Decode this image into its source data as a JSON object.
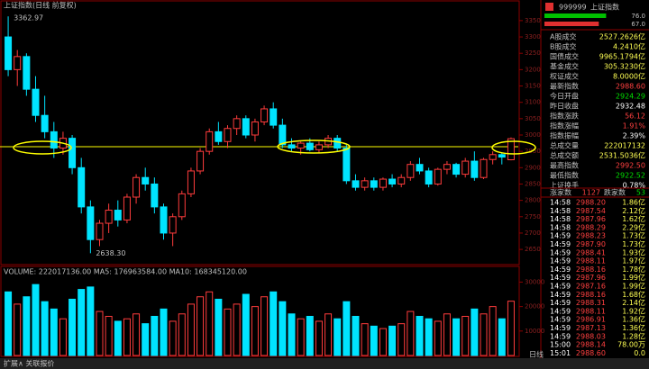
{
  "chart_data": {
    "type": "candlestick",
    "title": "上证指数(日线 前复权)",
    "high_label": "3362.97",
    "low_label": "2638.30",
    "up_color": "#ff3c3c",
    "down_color": "#00e4ff",
    "open": [
      3300,
      3200,
      3240,
      3140,
      3060,
      3010,
      2960,
      2990,
      2900,
      2780,
      2680,
      2730,
      2770,
      2740,
      2810,
      2870,
      2850,
      2780,
      2700,
      2750,
      2820,
      2890,
      2950,
      3010,
      2980,
      3020,
      3050,
      3000,
      3040,
      3080,
      3030,
      2970,
      2960,
      2975,
      2955,
      2970,
      2990,
      2960,
      2860,
      2840,
      2860,
      2840,
      2865,
      2850,
      2870,
      2910,
      2890,
      2850,
      2895,
      2910,
      2880,
      2920,
      2870,
      2925,
      2940,
      2924.29
    ],
    "high": [
      3362.97,
      3260,
      3250,
      3180,
      3120,
      3040,
      3010,
      3000,
      2930,
      2800,
      2740,
      2790,
      2800,
      2820,
      2880,
      2900,
      2870,
      2790,
      2760,
      2830,
      2900,
      2960,
      3020,
      3040,
      3030,
      3060,
      3060,
      3050,
      3090,
      3100,
      3050,
      2990,
      2980,
      2990,
      2980,
      3000,
      3000,
      2970,
      2880,
      2870,
      2870,
      2870,
      2880,
      2880,
      2920,
      2930,
      2900,
      2900,
      2920,
      2915,
      2930,
      2950,
      2930,
      2950,
      2945,
      2992.5
    ],
    "low": [
      3180,
      3150,
      3120,
      3040,
      2990,
      2930,
      2940,
      2880,
      2760,
      2638.3,
      2660,
      2700,
      2720,
      2730,
      2790,
      2830,
      2760,
      2680,
      2660,
      2740,
      2810,
      2880,
      2940,
      2970,
      2960,
      3000,
      2990,
      2980,
      3030,
      3020,
      2960,
      2950,
      2940,
      2950,
      2945,
      2960,
      2950,
      2850,
      2830,
      2830,
      2830,
      2830,
      2840,
      2840,
      2860,
      2880,
      2840,
      2845,
      2880,
      2870,
      2870,
      2860,
      2865,
      2910,
      2910,
      2922.52
    ],
    "close": [
      3200,
      3240,
      3140,
      3060,
      3010,
      2960,
      2990,
      2900,
      2780,
      2680,
      2730,
      2770,
      2740,
      2810,
      2870,
      2850,
      2780,
      2700,
      2750,
      2820,
      2890,
      2950,
      3010,
      2980,
      3020,
      3050,
      3000,
      3040,
      3080,
      3030,
      2970,
      2960,
      2975,
      2955,
      2970,
      2990,
      2960,
      2860,
      2840,
      2860,
      2840,
      2865,
      2850,
      2870,
      2910,
      2890,
      2850,
      2895,
      2910,
      2880,
      2920,
      2870,
      2925,
      2940,
      2932.48,
      2988.6
    ],
    "ylim": [
      2620,
      3380
    ],
    "yticks": [
      2650,
      2700,
      2750,
      2800,
      2850,
      2900,
      2950,
      3000,
      3050,
      3100,
      3150,
      3200,
      3250,
      3300,
      3350
    ],
    "volume_header": "VOLUME: 222017136.00  MA5: 176963584.00  MA10: 168345120.00",
    "volume": [
      26000,
      21000,
      24000,
      29000,
      22000,
      19000,
      15000,
      23000,
      27000,
      28000,
      18000,
      16000,
      14000,
      15000,
      17000,
      13000,
      16000,
      19000,
      14000,
      17000,
      21000,
      24000,
      26000,
      23000,
      19000,
      21000,
      25000,
      20000,
      24000,
      26000,
      22000,
      17000,
      15000,
      16000,
      14000,
      17000,
      15000,
      22000,
      16000,
      13000,
      12000,
      11000,
      12000,
      13000,
      18000,
      16000,
      15000,
      14000,
      17000,
      15000,
      16000,
      19000,
      17000,
      20000,
      15000,
      22201.7
    ],
    "vol_ylim": [
      0,
      32000
    ],
    "vol_yticks": [
      10000,
      20000,
      30000
    ]
  },
  "quote": {
    "code": "999999",
    "name": "上证指数",
    "ratio": [
      {
        "value": 76.0,
        "label": "76.0",
        "color": "#00c000"
      },
      {
        "value": 67.0,
        "label": "67.0",
        "color": "#e03030"
      }
    ],
    "rows": [
      {
        "label": "A股成交",
        "value": "2527.2626亿",
        "color": "#ffff54"
      },
      {
        "label": "B股成交",
        "value": "4.2410亿",
        "color": "#ffff54"
      },
      {
        "label": "国债成交",
        "value": "9965.1794亿",
        "color": "#ffff54"
      },
      {
        "label": "基金成交",
        "value": "305.3230亿",
        "color": "#ffff54"
      },
      {
        "label": "权证成交",
        "value": "8.0000亿",
        "color": "#ffff54"
      },
      {
        "label": "最新指数",
        "value": "2988.60",
        "color": "#ff4040"
      },
      {
        "label": "今日开盘",
        "value": "2924.29",
        "color": "#00e000"
      },
      {
        "label": "昨日收盘",
        "value": "2932.48",
        "color": "#ffffff"
      },
      {
        "label": "指数涨跌",
        "value": "56.12",
        "color": "#ff4040"
      },
      {
        "label": "指数涨幅",
        "value": "1.91%",
        "color": "#ff4040"
      },
      {
        "label": "指数振幅",
        "value": "2.39%",
        "color": "#ffffff"
      },
      {
        "label": "总成交量",
        "value": "222017132",
        "color": "#ffff54"
      },
      {
        "label": "总成交额",
        "value": "2531.5036亿",
        "color": "#ffff54"
      },
      {
        "label": "最高指数",
        "value": "2992.50",
        "color": "#ff4040"
      },
      {
        "label": "最低指数",
        "value": "2922.52",
        "color": "#00e000"
      },
      {
        "label": "上证换手",
        "value": "0.78%",
        "color": "#ffffff"
      }
    ],
    "up_label": "涨家数",
    "up_count": "1127",
    "down_label": "跌家数",
    "down_count": "53",
    "ticks": [
      [
        "14:58",
        "2988.20",
        "1.86亿"
      ],
      [
        "14:58",
        "2987.54",
        "2.12亿"
      ],
      [
        "14:58",
        "2987.96",
        "1.62亿"
      ],
      [
        "14:58",
        "2988.29",
        "2.29亿"
      ],
      [
        "14:59",
        "2988.23",
        "1.73亿"
      ],
      [
        "14:59",
        "2987.90",
        "1.73亿"
      ],
      [
        "14:59",
        "2988.41",
        "1.93亿"
      ],
      [
        "14:59",
        "2988.11",
        "1.97亿"
      ],
      [
        "14:59",
        "2988.16",
        "1.78亿"
      ],
      [
        "14:59",
        "2987.96",
        "1.99亿"
      ],
      [
        "14:59",
        "2987.16",
        "1.99亿"
      ],
      [
        "14:59",
        "2988.16",
        "1.68亿"
      ],
      [
        "14:59",
        "2988.31",
        "2.14亿"
      ],
      [
        "14:59",
        "2988.11",
        "1.92亿"
      ],
      [
        "14:59",
        "2986.91",
        "1.36亿"
      ],
      [
        "14:59",
        "2987.13",
        "1.36亿"
      ],
      [
        "14:59",
        "2988.03",
        "1.28亿"
      ],
      [
        "15:00",
        "2988.14",
        "78.00万"
      ],
      [
        "15:01",
        "2988.60",
        "0.0"
      ]
    ]
  },
  "footer": {
    "left": "扩展∧  关联报价",
    "period": "日线"
  }
}
